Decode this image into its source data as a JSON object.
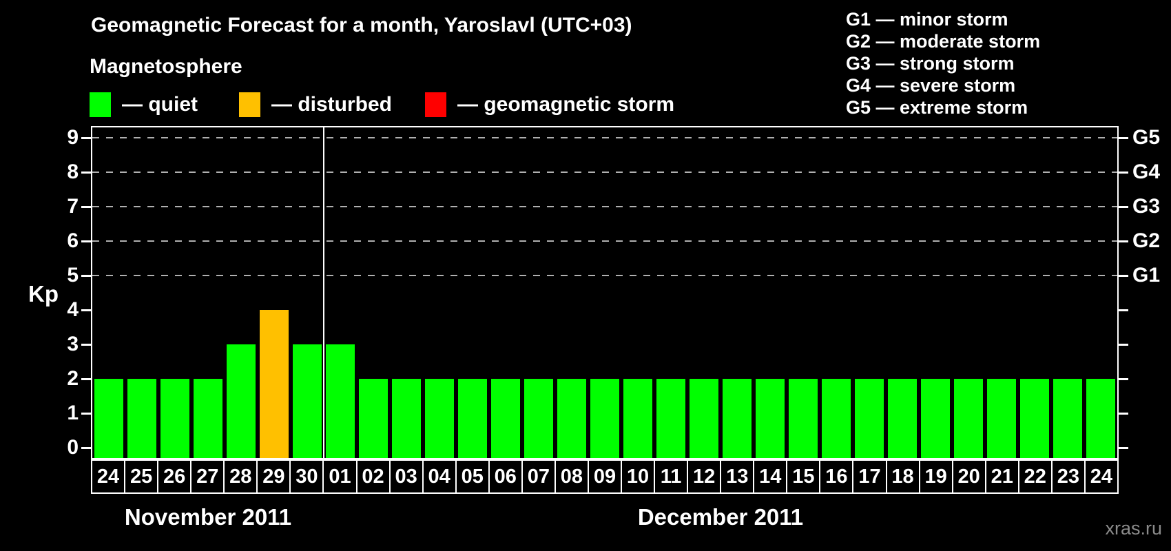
{
  "title": "Geomagnetic Forecast for a month, Yaroslavl (UTC+03)",
  "magnetosphere_legend": {
    "heading": "Magnetosphere",
    "items": [
      {
        "name": "quiet",
        "label": "— quiet",
        "color": "#00ff00"
      },
      {
        "name": "disturbed",
        "label": "— disturbed",
        "color": "#ffc000"
      },
      {
        "name": "storm",
        "label": "— geomagnetic storm",
        "color": "#ff0000"
      }
    ]
  },
  "storm_scale": {
    "items": [
      "G1 — minor storm",
      "G2 — moderate storm",
      "G3 — strong storm",
      "G4 — severe storm",
      "G5 — extreme storm"
    ]
  },
  "watermark": "xras.ru",
  "colors": {
    "background": "#000000",
    "axis": "#ffffff",
    "grid": "#b0b0b0",
    "quiet": "#00ff00",
    "disturbed": "#ffc000",
    "storm": "#ff0000"
  },
  "chart_data": {
    "type": "bar",
    "title": "Geomagnetic Forecast for a month, Yaroslavl (UTC+03)",
    "ylabel": "Kp",
    "ylim": [
      0,
      9
    ],
    "yticks": [
      0,
      1,
      2,
      3,
      4,
      5,
      6,
      7,
      8,
      9
    ],
    "gridlines_at_kp": [
      5,
      6,
      7,
      8,
      9
    ],
    "grid": "dashed horizontal at G-storm levels only",
    "legend_position": "top",
    "right_axis": [
      {
        "kp": 5,
        "label": "G1"
      },
      {
        "kp": 6,
        "label": "G2"
      },
      {
        "kp": 7,
        "label": "G3"
      },
      {
        "kp": 8,
        "label": "G4"
      },
      {
        "kp": 9,
        "label": "G5"
      }
    ],
    "months": [
      {
        "label": "November 2011",
        "days": [
          "24",
          "25",
          "26",
          "27",
          "28",
          "29",
          "30"
        ],
        "values": [
          2,
          2,
          2,
          2,
          3,
          4,
          3
        ],
        "status": [
          "quiet",
          "quiet",
          "quiet",
          "quiet",
          "quiet",
          "disturbed",
          "quiet"
        ]
      },
      {
        "label": "December 2011",
        "days": [
          "01",
          "02",
          "03",
          "04",
          "05",
          "06",
          "07",
          "08",
          "09",
          "10",
          "11",
          "12",
          "13",
          "14",
          "15",
          "16",
          "17",
          "18",
          "19",
          "20",
          "21",
          "22",
          "23",
          "24"
        ],
        "values": [
          3,
          2,
          2,
          2,
          2,
          2,
          2,
          2,
          2,
          2,
          2,
          2,
          2,
          2,
          2,
          2,
          2,
          2,
          2,
          2,
          2,
          2,
          2,
          2
        ],
        "status": [
          "quiet",
          "quiet",
          "quiet",
          "quiet",
          "quiet",
          "quiet",
          "quiet",
          "quiet",
          "quiet",
          "quiet",
          "quiet",
          "quiet",
          "quiet",
          "quiet",
          "quiet",
          "quiet",
          "quiet",
          "quiet",
          "quiet",
          "quiet",
          "quiet",
          "quiet",
          "quiet",
          "quiet"
        ]
      }
    ]
  }
}
